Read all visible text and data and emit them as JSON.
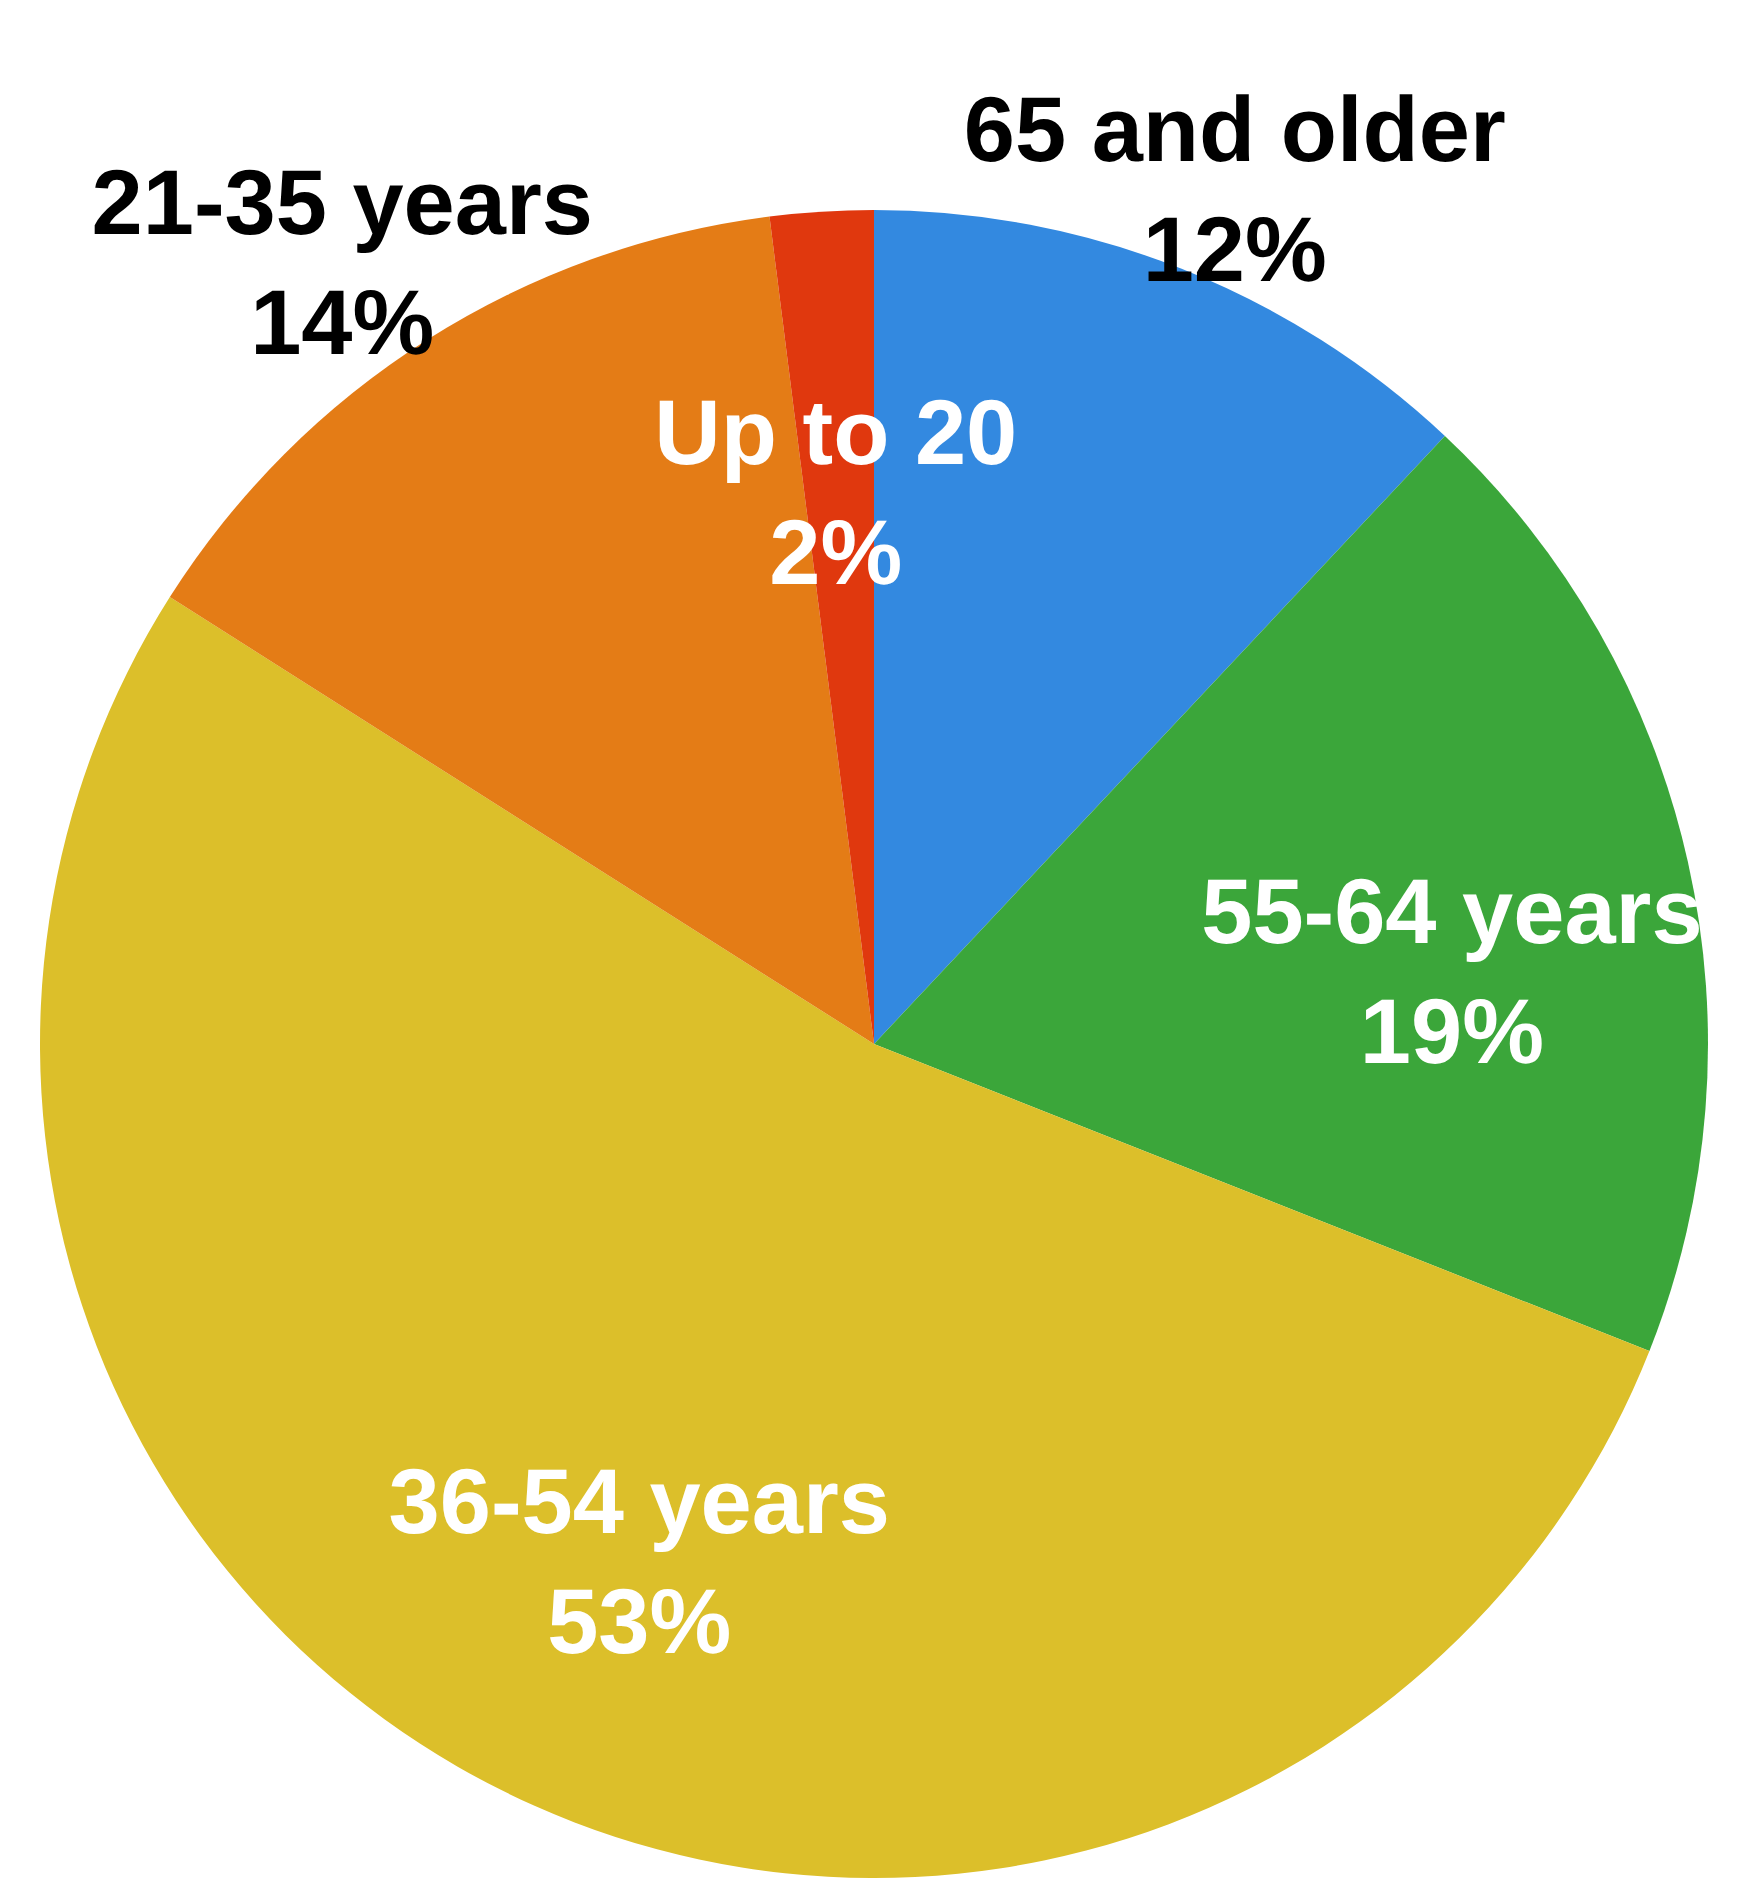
{
  "chart_data": {
    "type": "pie",
    "categories": [
      "65 and older",
      "55-64 years",
      "36-54 years",
      "21-35 years",
      "Up to 20"
    ],
    "values": [
      12,
      19,
      53,
      14,
      2
    ],
    "value_labels": [
      "12%",
      "19%",
      "53%",
      "14%",
      "2%"
    ],
    "colors": [
      "#3389e0",
      "#3ba63a",
      "#dcbf2a",
      "#e47c16",
      "#e0380e"
    ]
  }
}
